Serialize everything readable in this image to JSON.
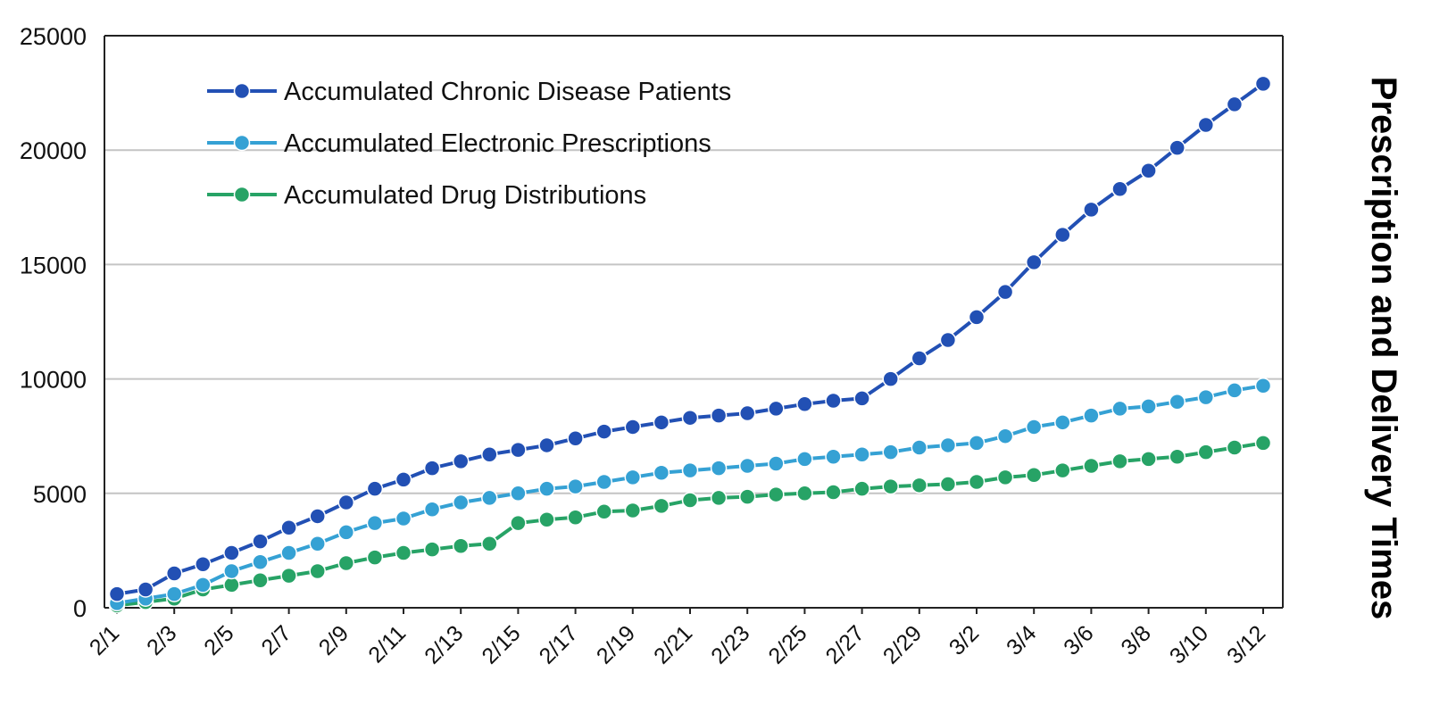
{
  "chart_data": {
    "type": "line",
    "title": "",
    "xlabel": "",
    "ylabel": "Prescription and Delivery Times",
    "ylim": [
      0,
      25000
    ],
    "yticks": [
      0,
      5000,
      10000,
      15000,
      20000,
      25000
    ],
    "x": [
      "2/1",
      "2/2",
      "2/3",
      "2/4",
      "2/5",
      "2/6",
      "2/7",
      "2/8",
      "2/9",
      "2/10",
      "2/11",
      "2/12",
      "2/13",
      "2/14",
      "2/15",
      "2/16",
      "2/17",
      "2/18",
      "2/19",
      "2/20",
      "2/21",
      "2/22",
      "2/23",
      "2/24",
      "2/25",
      "2/26",
      "2/27",
      "2/28",
      "2/29",
      "3/1",
      "3/2",
      "3/3",
      "3/4",
      "3/5",
      "3/6",
      "3/7",
      "3/8",
      "3/9",
      "3/10",
      "3/11",
      "3/12"
    ],
    "x_tick_labels": [
      "2/1",
      "2/3",
      "2/5",
      "2/7",
      "2/9",
      "2/11",
      "2/13",
      "2/15",
      "2/17",
      "2/19",
      "2/21",
      "2/23",
      "2/25",
      "2/27",
      "2/29",
      "3/2",
      "3/4",
      "3/6",
      "3/8",
      "3/10",
      "3/12"
    ],
    "grid": "horizontal",
    "legend_position": "top-left",
    "series": [
      {
        "name": "Accumulated Chronic Disease Patients",
        "color": "#2250b4",
        "values": [
          600,
          800,
          1500,
          1900,
          2400,
          2900,
          3500,
          4000,
          4600,
          5200,
          5600,
          6100,
          6400,
          6700,
          6900,
          7100,
          7400,
          7700,
          7900,
          8100,
          8300,
          8400,
          8500,
          8700,
          8900,
          9050,
          9150,
          10000,
          10900,
          11700,
          12700,
          13800,
          15100,
          16300,
          17400,
          18300,
          19100,
          20100,
          21100,
          22000,
          22900
        ]
      },
      {
        "name": "Accumulated Electronic Prescriptions",
        "color": "#35a1d4",
        "values": [
          200,
          400,
          600,
          1000,
          1600,
          2000,
          2400,
          2800,
          3300,
          3700,
          3900,
          4300,
          4600,
          4800,
          5000,
          5200,
          5300,
          5500,
          5700,
          5900,
          6000,
          6100,
          6200,
          6300,
          6500,
          6600,
          6700,
          6800,
          7000,
          7100,
          7200,
          7500,
          7900,
          8100,
          8400,
          8700,
          8800,
          9000,
          9200,
          9500,
          9700
        ]
      },
      {
        "name": "Accumulated Drug Distributions",
        "color": "#27a366",
        "values": [
          100,
          250,
          400,
          800,
          1000,
          1200,
          1400,
          1600,
          1950,
          2200,
          2400,
          2550,
          2700,
          2800,
          3700,
          3850,
          3950,
          4200,
          4250,
          4450,
          4700,
          4800,
          4850,
          4950,
          5000,
          5050,
          5200,
          5300,
          5350,
          5400,
          5500,
          5700,
          5800,
          6000,
          6200,
          6400,
          6500,
          6600,
          6800,
          7000,
          7200
        ]
      }
    ]
  }
}
